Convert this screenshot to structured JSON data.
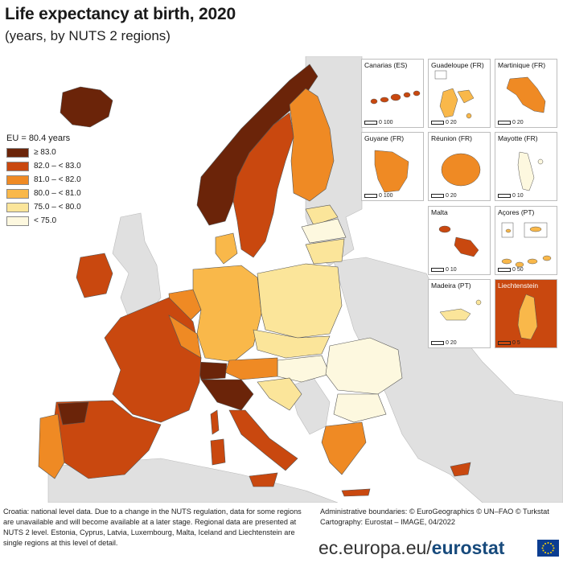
{
  "title": "Life expectancy at birth, 2020",
  "subtitle": "(years, by NUTS 2 regions)",
  "legend": {
    "title": "EU = 80.4 years",
    "items": [
      {
        "label": "≥ 83.0",
        "color": "#6b2409"
      },
      {
        "label": "82.0 – < 83.0",
        "color": "#c9480f"
      },
      {
        "label": "81.0 – < 82.0",
        "color": "#ef8a24"
      },
      {
        "label": "80.0 – < 81.0",
        "color": "#f9b84a"
      },
      {
        "label": "75.0 – < 80.0",
        "color": "#fbe59a"
      },
      {
        "label": "< 75.0",
        "color": "#fdf8df"
      }
    ]
  },
  "insets": [
    {
      "name": "Canarias (ES)",
      "scale": "0  100"
    },
    {
      "name": "Guadeloupe (FR)",
      "scale": "0  20"
    },
    {
      "name": "Martinique (FR)",
      "scale": "0  20"
    },
    {
      "name": "Guyane (FR)",
      "scale": "0  100"
    },
    {
      "name": "Réunion (FR)",
      "scale": "0  20"
    },
    {
      "name": "Mayotte (FR)",
      "scale": "0  10"
    },
    {
      "name": "Malta",
      "scale": "0  10"
    },
    {
      "name": "Açores (PT)",
      "scale": "0  50"
    },
    {
      "name": "Madeira (PT)",
      "scale": "0  20"
    },
    {
      "name": "Liechtenstein",
      "scale": "0  5"
    }
  ],
  "footnote": "Croatia: national level data. Due to a change in the NUTS regulation, data for some regions are unavailable and will become available at a later stage. Regional data are presented at NUTS 2 level. Estonia, Cyprus, Latvia, Luxembourg, Malta, Iceland and Liechtenstein are single regions at this level of detail.",
  "credits": {
    "boundaries": "Administrative boundaries: © EuroGeographics © UN–FAO © Turkstat",
    "cartography": "Cartography: Eurostat – IMAGE, 04/2022"
  },
  "brand": {
    "domain": "ec.europa.eu/",
    "name": "eurostat"
  },
  "colors": {
    "sea": "#ffffff",
    "non_eu": "#e0e0e0",
    "border": "#555555"
  }
}
